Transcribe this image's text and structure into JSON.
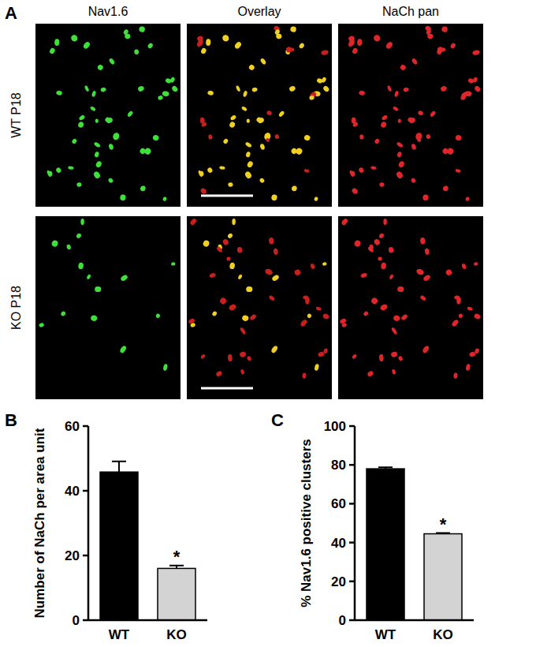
{
  "figure": {
    "panels": [
      "A",
      "B",
      "C"
    ],
    "panel_a": {
      "columns": [
        "Nav1.6",
        "Overlay",
        "NaCh pan"
      ],
      "rows": [
        "WT P18",
        "KO P18"
      ]
    }
  },
  "chart_data": [
    {
      "type": "bar",
      "y_label": "Number of NaCh per area unit",
      "categories": [
        "WT",
        "KO"
      ],
      "values": [
        45.8,
        16
      ],
      "errors": [
        3.3,
        0.9
      ],
      "colors": [
        "#000000",
        "#d3d3d3"
      ],
      "ylim": [
        0,
        60
      ],
      "yticks": [
        0,
        20,
        40,
        60
      ],
      "annotations": [
        {
          "text": "*",
          "category": "KO"
        }
      ]
    },
    {
      "type": "bar",
      "y_label": "% Nav1.6 positive clusters",
      "categories": [
        "WT",
        "KO"
      ],
      "values": [
        78,
        44.5
      ],
      "errors": [
        0.8,
        0.4
      ],
      "colors": [
        "#000000",
        "#d3d3d3"
      ],
      "ylim": [
        0,
        100
      ],
      "yticks": [
        0,
        20,
        40,
        60,
        80,
        100
      ],
      "annotations": [
        {
          "text": "*",
          "category": "KO"
        }
      ]
    }
  ]
}
